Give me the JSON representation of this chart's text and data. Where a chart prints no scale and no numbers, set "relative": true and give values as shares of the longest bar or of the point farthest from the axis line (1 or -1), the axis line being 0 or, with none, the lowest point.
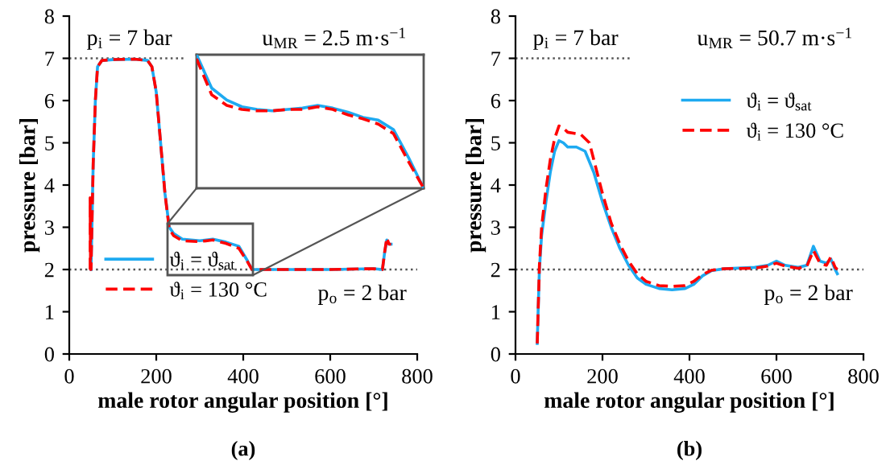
{
  "chart_data": [
    {
      "type": "line",
      "xlabel": "male rotor angular position [°]",
      "ylabel": "pressure [bar]",
      "xlim": [
        0,
        800
      ],
      "xticks": [
        0,
        200,
        400,
        600,
        800
      ],
      "ylim": [
        0,
        8
      ],
      "yticks": [
        0,
        1,
        2,
        3,
        4,
        5,
        6,
        7,
        8
      ],
      "grid": false,
      "legend": "bottom left",
      "annotations": [
        "p$_{i}$ = 7 bar",
        "u$_{MR}$ = 2.5 m·s$^{−1}$",
        "p$_{o}$ = 2 bar",
        "(a)"
      ],
      "ref_lines": [
        {
          "axis": "y",
          "value": 7,
          "line_style": "dotted",
          "color": "#555555"
        },
        {
          "axis": "y",
          "value": 2,
          "line_style": "dotted",
          "color": "#555555"
        }
      ],
      "series": [
        {
          "name": "ϑ$_{i}$ = ϑ$_{sat}$",
          "color": "#1eaaf1",
          "line_style": "solid",
          "x": [
            50,
            55,
            60,
            65,
            75,
            100,
            150,
            180,
            190,
            200,
            210,
            220,
            230,
            240,
            260,
            300,
            330,
            360,
            390,
            410,
            420,
            500,
            600,
            700,
            720,
            725,
            730,
            735,
            740
          ],
          "values": [
            2.0,
            4.5,
            6.0,
            6.8,
            6.95,
            6.97,
            6.98,
            6.95,
            6.8,
            6.2,
            5.0,
            3.8,
            3.0,
            2.85,
            2.72,
            2.68,
            2.72,
            2.65,
            2.55,
            2.2,
            2.0,
            2.0,
            2.0,
            2.02,
            2.0,
            2.4,
            2.7,
            2.6,
            2.6
          ]
        },
        {
          "name": "ϑ$_{i}$ = 130 °C",
          "color": "#ff0000",
          "line_style": "dashed",
          "x": [
            48,
            48,
            49,
            50,
            55,
            60,
            65,
            75,
            100,
            150,
            180,
            190,
            200,
            210,
            220,
            230,
            240,
            260,
            300,
            330,
            360,
            390,
            410,
            420,
            500,
            600,
            700,
            720,
            725,
            730,
            735,
            740
          ],
          "values": [
            2.0,
            3.7,
            2.0,
            2.0,
            4.5,
            6.0,
            6.8,
            6.95,
            6.97,
            6.98,
            6.95,
            6.8,
            6.2,
            5.0,
            3.8,
            2.95,
            2.8,
            2.68,
            2.66,
            2.7,
            2.62,
            2.5,
            2.18,
            2.0,
            2.0,
            2.0,
            2.02,
            2.0,
            2.4,
            2.75,
            2.6,
            2.6
          ]
        }
      ]
    },
    {
      "type": "line",
      "relative": true,
      "tick_labels": false,
      "grid": false,
      "legend": false,
      "categories": [
        null,
        null,
        null,
        null,
        null,
        null,
        null,
        null,
        null,
        null,
        null,
        null,
        null,
        null,
        null,
        null
      ],
      "series": [
        {
          "color": "#1eaaf1",
          "line_style": "solid",
          "values": [
            1.0,
            0.75,
            0.66,
            0.61,
            0.59,
            0.58,
            0.59,
            0.6,
            0.62,
            0.6,
            0.57,
            0.53,
            0.51,
            0.44,
            0.23,
            0.0
          ]
        },
        {
          "color": "#ff0000",
          "line_style": "dashed",
          "values": [
            0.97,
            0.7,
            0.62,
            0.59,
            0.58,
            0.58,
            0.59,
            0.59,
            0.61,
            0.59,
            0.55,
            0.52,
            0.48,
            0.41,
            0.2,
            0.0
          ]
        }
      ]
    },
    {
      "type": "line",
      "xlabel": "male rotor angular position [°]",
      "ylabel": "pressure [bar]",
      "xlim": [
        0,
        800
      ],
      "xticks": [
        0,
        200,
        400,
        600,
        800
      ],
      "ylim": [
        0,
        8
      ],
      "yticks": [
        0,
        1,
        2,
        3,
        4,
        5,
        6,
        7,
        8
      ],
      "grid": false,
      "legend": "right",
      "annotations": [
        "p$_{i}$ = 7 bar",
        "u$_{MR}$ = 50.7 m·s$^{−1}$",
        "p$_{o}$ = 2 bar",
        "(b)"
      ],
      "ref_lines": [
        {
          "axis": "y",
          "value": 7,
          "line_style": "dotted",
          "color": "#555555"
        },
        {
          "axis": "y",
          "value": 2,
          "line_style": "dotted",
          "color": "#555555"
        }
      ],
      "series": [
        {
          "name": "ϑ$_{i}$ = ϑ$_{sat}$",
          "color": "#1eaaf1",
          "line_style": "solid",
          "x": [
            50,
            52,
            55,
            60,
            70,
            80,
            90,
            100,
            110,
            120,
            140,
            160,
            180,
            200,
            220,
            240,
            260,
            280,
            300,
            330,
            360,
            390,
            410,
            430,
            450,
            480,
            550,
            580,
            600,
            620,
            650,
            670,
            685,
            700,
            715,
            725,
            735,
            740
          ],
          "values": [
            0.25,
            1.0,
            2.0,
            2.8,
            3.6,
            4.3,
            4.8,
            5.05,
            5.0,
            4.9,
            4.9,
            4.8,
            4.3,
            3.6,
            3.0,
            2.5,
            2.1,
            1.8,
            1.65,
            1.55,
            1.52,
            1.55,
            1.65,
            1.85,
            1.97,
            2.02,
            2.05,
            2.1,
            2.2,
            2.1,
            2.05,
            2.1,
            2.55,
            2.2,
            2.15,
            2.25,
            2.0,
            1.9
          ]
        },
        {
          "name": "ϑ$_{i}$ = 130 °C",
          "color": "#ff0000",
          "line_style": "dashed",
          "x": [
            50,
            55,
            60,
            70,
            80,
            90,
            100,
            110,
            120,
            150,
            170,
            180,
            200,
            220,
            240,
            260,
            280,
            300,
            330,
            360,
            390,
            410,
            430,
            450,
            480,
            550,
            580,
            600,
            620,
            650,
            670,
            685,
            700,
            715,
            725,
            735,
            740
          ],
          "values": [
            0.25,
            2.1,
            3.0,
            3.9,
            4.6,
            5.1,
            5.4,
            5.35,
            5.25,
            5.2,
            5.0,
            4.6,
            3.8,
            3.1,
            2.6,
            2.2,
            1.9,
            1.72,
            1.62,
            1.6,
            1.62,
            1.72,
            1.88,
            1.98,
            2.02,
            2.03,
            2.08,
            2.15,
            2.08,
            2.03,
            2.08,
            2.45,
            2.15,
            2.1,
            2.3,
            2.05,
            2.0
          ]
        }
      ]
    }
  ]
}
